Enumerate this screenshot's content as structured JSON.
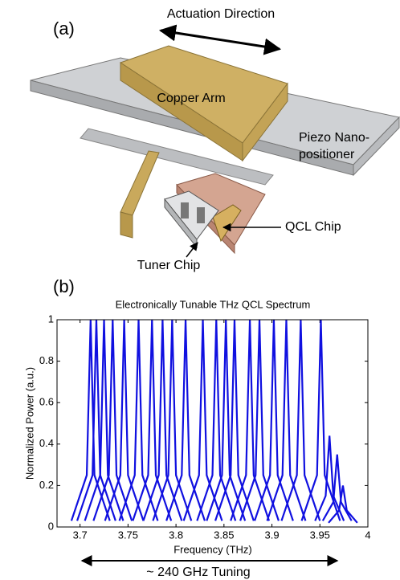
{
  "diagram": {
    "panel_label": "(a)",
    "direction": "Actuation Direction",
    "copper": "Copper Arm",
    "piezo": [
      "Piezo Nano-",
      "positioner"
    ],
    "qcl": "QCL Chip",
    "tuner": "Tuner Chip"
  },
  "chart_data": {
    "type": "line",
    "panel_label": "(b)",
    "title": "Electronically Tunable THz QCL Spectrum",
    "x_label": "Frequency (THz)",
    "y_label": "Normalized Power (a.u.)",
    "annotation": "~ 240 GHz Tuning",
    "color": "#1010e0",
    "xlim": [
      3.676,
      4
    ],
    "ylim": [
      0,
      1
    ],
    "xticks": [
      3.7,
      3.75,
      3.8,
      3.85,
      3.9,
      3.95,
      4
    ],
    "yticks": [
      0,
      0.2,
      0.4,
      0.6,
      0.8,
      1
    ],
    "series": [
      {
        "x": [
          3.691,
          3.707,
          3.711,
          3.715,
          3.731
        ],
        "values": [
          0.03,
          0.25,
          1,
          0.25,
          0.03
        ]
      },
      {
        "x": [
          3.697,
          3.713,
          3.717,
          3.721,
          3.737
        ],
        "values": [
          0.03,
          0.25,
          1,
          0.25,
          0.03
        ]
      },
      {
        "x": [
          3.705,
          3.721,
          3.725,
          3.729,
          3.745
        ],
        "values": [
          0.03,
          0.25,
          1,
          0.25,
          0.03
        ]
      },
      {
        "x": [
          3.714,
          3.73,
          3.734,
          3.738,
          3.754
        ],
        "values": [
          0.03,
          0.25,
          1,
          0.25,
          0.03
        ]
      },
      {
        "x": [
          3.726,
          3.742,
          3.746,
          3.75,
          3.766
        ],
        "values": [
          0.03,
          0.25,
          1,
          0.25,
          0.03
        ]
      },
      {
        "x": [
          3.741,
          3.757,
          3.761,
          3.765,
          3.781
        ],
        "values": [
          0.03,
          0.25,
          1,
          0.25,
          0.03
        ]
      },
      {
        "x": [
          3.755,
          3.771,
          3.775,
          3.779,
          3.795
        ],
        "values": [
          0.03,
          0.25,
          1,
          0.25,
          0.03
        ]
      },
      {
        "x": [
          3.766,
          3.782,
          3.786,
          3.79,
          3.806
        ],
        "values": [
          0.03,
          0.25,
          1,
          0.25,
          0.03
        ]
      },
      {
        "x": [
          3.776,
          3.792,
          3.796,
          3.8,
          3.816
        ],
        "values": [
          0.03,
          0.25,
          1,
          0.25,
          0.03
        ]
      },
      {
        "x": [
          3.79,
          3.806,
          3.81,
          3.814,
          3.83
        ],
        "values": [
          0.03,
          0.25,
          1,
          0.25,
          0.03
        ]
      },
      {
        "x": [
          3.808,
          3.824,
          3.828,
          3.832,
          3.848
        ],
        "values": [
          0.03,
          0.25,
          1,
          0.25,
          0.03
        ]
      },
      {
        "x": [
          3.822,
          3.838,
          3.842,
          3.846,
          3.862
        ],
        "values": [
          0.03,
          0.25,
          1,
          0.25,
          0.03
        ]
      },
      {
        "x": [
          3.832,
          3.848,
          3.852,
          3.856,
          3.872
        ],
        "values": [
          0.03,
          0.25,
          1,
          0.25,
          0.03
        ]
      },
      {
        "x": [
          3.841,
          3.857,
          3.861,
          3.865,
          3.881
        ],
        "values": [
          0.03,
          0.25,
          1,
          0.25,
          0.03
        ]
      },
      {
        "x": [
          3.857,
          3.873,
          3.877,
          3.881,
          3.897
        ],
        "values": [
          0.03,
          0.25,
          1,
          0.25,
          0.03
        ]
      },
      {
        "x": [
          3.867,
          3.883,
          3.887,
          3.891,
          3.907
        ],
        "values": [
          0.03,
          0.25,
          1,
          0.25,
          0.03
        ]
      },
      {
        "x": [
          3.882,
          3.898,
          3.902,
          3.906,
          3.922
        ],
        "values": [
          0.03,
          0.25,
          1,
          0.25,
          0.03
        ]
      },
      {
        "x": [
          3.895,
          3.911,
          3.915,
          3.919,
          3.935
        ],
        "values": [
          0.03,
          0.25,
          1,
          0.25,
          0.03
        ]
      },
      {
        "x": [
          3.91,
          3.926,
          3.93,
          3.934,
          3.95
        ],
        "values": [
          0.03,
          0.25,
          1,
          0.25,
          0.03
        ]
      },
      {
        "x": [
          3.931,
          3.947,
          3.951,
          3.955,
          3.971
        ],
        "values": [
          0.03,
          0.25,
          1,
          0.25,
          0.03
        ]
      },
      {
        "x": [
          3.945,
          3.956,
          3.96,
          3.964,
          3.975
        ],
        "values": [
          0.03,
          0.15,
          0.44,
          0.15,
          0.03
        ]
      },
      {
        "x": [
          3.953,
          3.964,
          3.968,
          3.972,
          3.983
        ],
        "values": [
          0.03,
          0.12,
          0.35,
          0.12,
          0.03
        ]
      },
      {
        "x": [
          3.959,
          3.97,
          3.974,
          3.978,
          3.989
        ],
        "values": [
          0.02,
          0.08,
          0.2,
          0.08,
          0.02
        ]
      }
    ]
  }
}
